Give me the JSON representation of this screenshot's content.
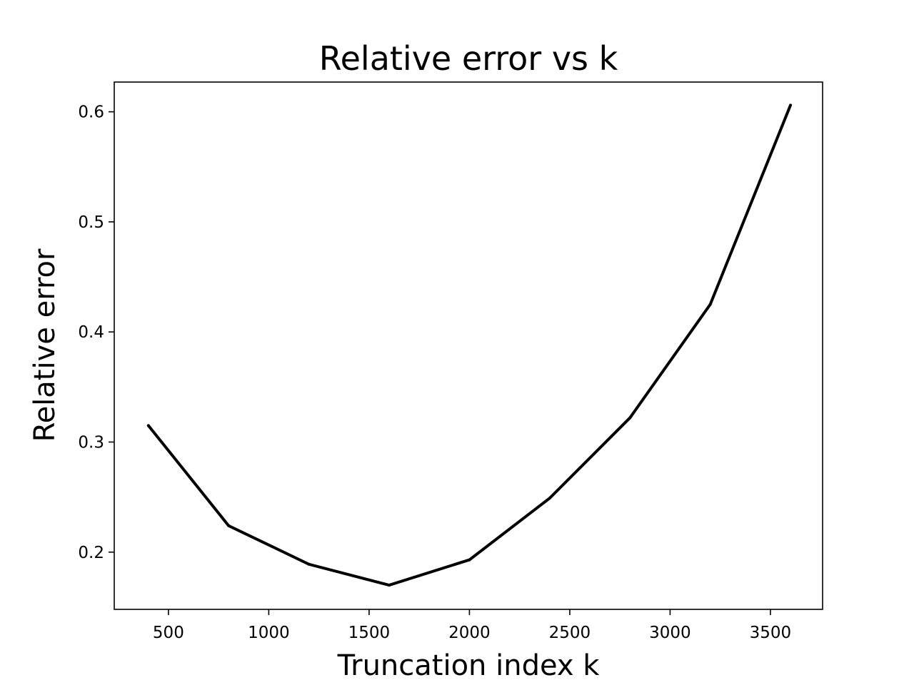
{
  "chart_data": {
    "type": "line",
    "title": "Relative error vs k",
    "xlabel": "Truncation index  k",
    "ylabel": "Relative error",
    "xlim": [
      230,
      3760
    ],
    "ylim": [
      0.148,
      0.627
    ],
    "x_ticks": [
      500,
      1000,
      1500,
      2000,
      2500,
      3000,
      3500
    ],
    "x_tick_labels": [
      "500",
      "1000",
      "1500",
      "2000",
      "2500",
      "3000",
      "3500"
    ],
    "y_ticks": [
      0.2,
      0.3,
      0.4,
      0.5,
      0.6
    ],
    "y_tick_labels": [
      "0.2",
      "0.3",
      "0.4",
      "0.5",
      "0.6"
    ],
    "grid": false,
    "legend": "none",
    "series": [
      {
        "color": "#000000",
        "x": [
          400,
          800,
          1200,
          1600,
          2000,
          2400,
          2800,
          3200,
          3600
        ],
        "y": [
          0.315,
          0.224,
          0.189,
          0.17,
          0.193,
          0.249,
          0.322,
          0.425,
          0.606
        ]
      }
    ]
  }
}
